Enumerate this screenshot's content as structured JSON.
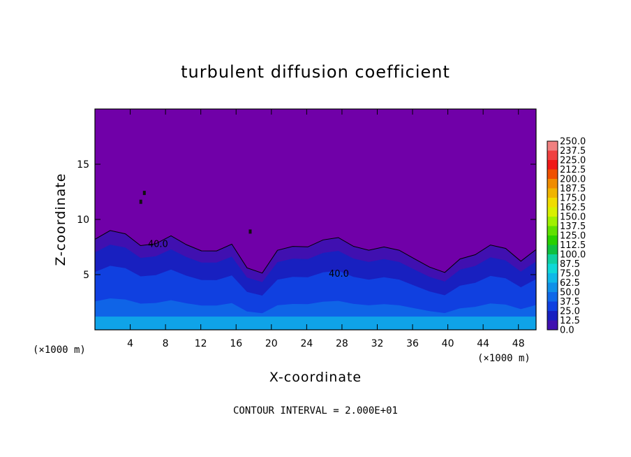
{
  "chart_data": {
    "type": "heatmap",
    "title": "turbulent diffusion coefficient",
    "xlabel": "X-coordinate",
    "ylabel": "Z-coordinate",
    "x_unit_label": "(×1000 m)",
    "xlim": [
      0,
      50
    ],
    "ylim": [
      0,
      20
    ],
    "x_ticks": [
      4,
      8,
      12,
      16,
      20,
      24,
      28,
      32,
      36,
      40,
      44,
      48
    ],
    "y_ticks": [
      5,
      10,
      15
    ],
    "contour_interval_text": "CONTOUR INTERVAL = 2.000E+01",
    "contour_labels": [
      "40.0",
      "40.0"
    ],
    "colorbar": {
      "levels": [
        "250.0",
        "237.5",
        "225.0",
        "212.5",
        "200.0",
        "187.5",
        "175.0",
        "162.5",
        "150.0",
        "137.5",
        "125.0",
        "112.5",
        "100.0",
        "87.5",
        "75.0",
        "62.5",
        "50.0",
        "37.5",
        "25.0",
        "12.5",
        "0.0"
      ],
      "colors": [
        "#f08080",
        "#f04040",
        "#f01818",
        "#f05000",
        "#f08c00",
        "#f0b400",
        "#f0dc00",
        "#d8f000",
        "#a0f000",
        "#60e000",
        "#28d000",
        "#10c040",
        "#10d0a0",
        "#10d8d8",
        "#10b8e8",
        "#1090e8",
        "#1068e8",
        "#1040e0",
        "#1820c0",
        "#4010b0",
        "#7000a8"
      ]
    },
    "background_color": "#7000a8",
    "turbulent_top_z": [
      8.2,
      8.6,
      8.8,
      8.0,
      7.6,
      8.2,
      8.0,
      7.4,
      6.8,
      7.6,
      6.0,
      5.2,
      6.8,
      7.6,
      7.9,
      8.0,
      8.0,
      7.8,
      7.5,
      7.2,
      7.0,
      6.8,
      5.8,
      4.8,
      6.4,
      7.2,
      7.6,
      7.0,
      6.4,
      7.6
    ]
  }
}
